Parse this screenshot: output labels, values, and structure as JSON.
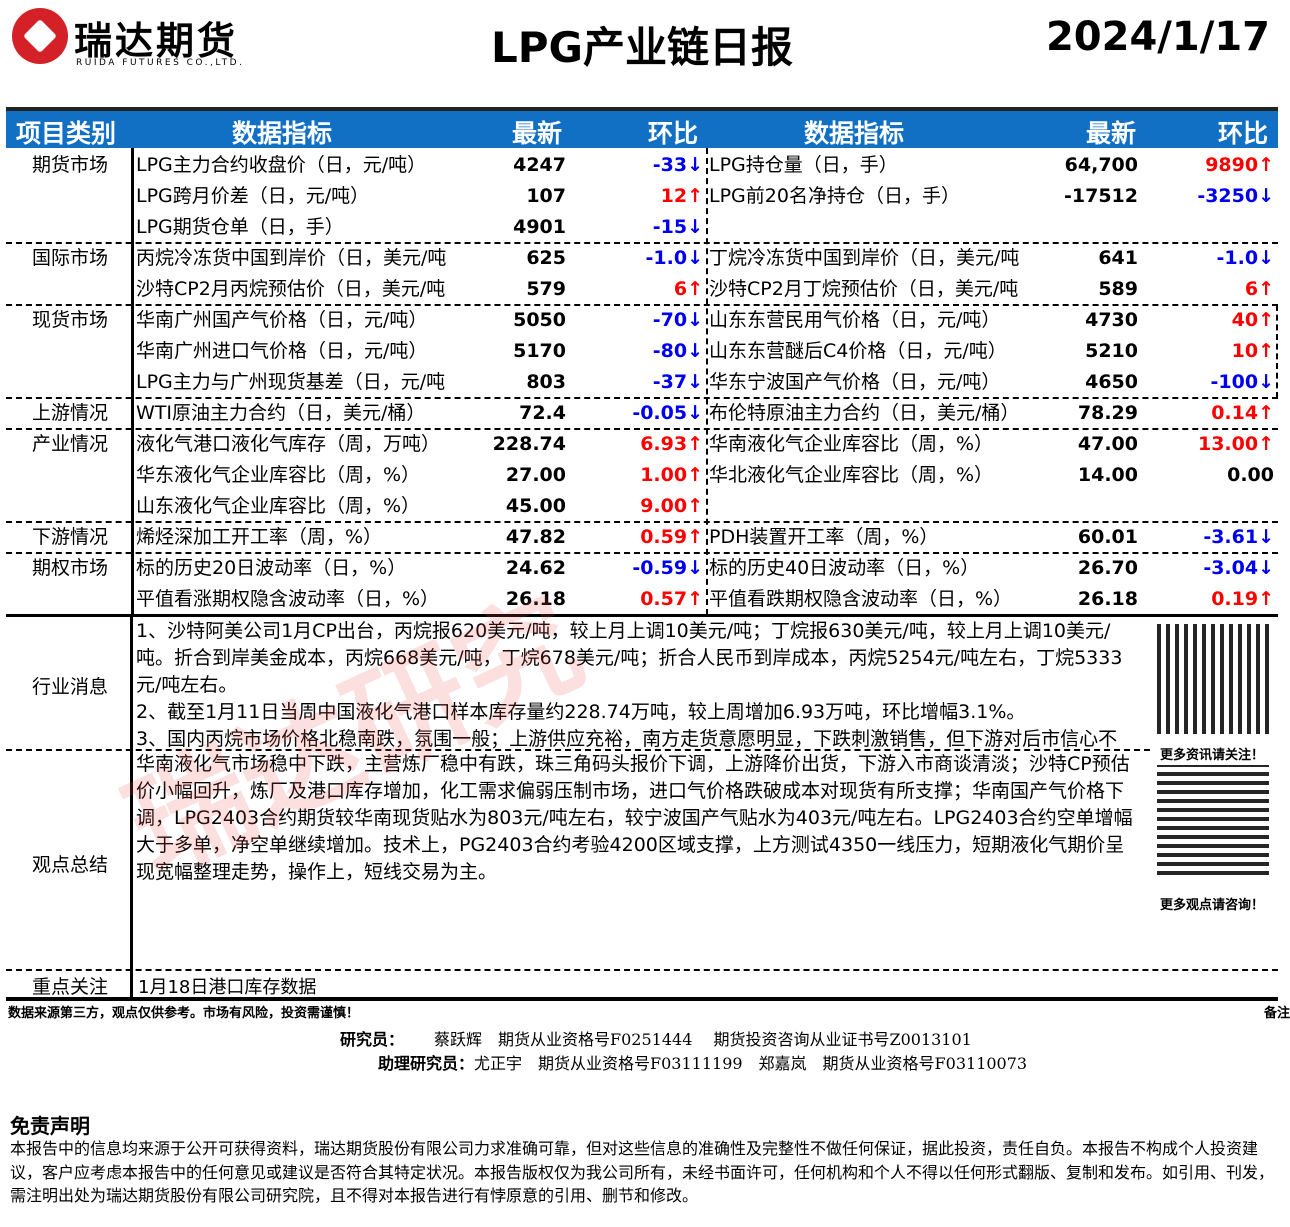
{
  "header": {
    "logo_cn": "瑞达期货",
    "logo_en": "RUIDA FUTURES CO.,LTD.",
    "title": "LPG产业链日报",
    "date": "2024/1/17"
  },
  "columns": {
    "category": "项目类别",
    "indicator": "数据指标",
    "latest": "最新",
    "change": "环比"
  },
  "colors": {
    "header_bg": "#1170c4",
    "up": "#ff0000",
    "down": "#0000f0"
  },
  "groups": [
    {
      "name": "期货市场",
      "rows": [
        [
          {
            "name": "LPG主力合约收盘价（日，元/吨）",
            "value": "4247",
            "change": "-33↓",
            "dir": "down"
          },
          {
            "name": "LPG持仓量（日，手）",
            "value": "64,700",
            "change": "9890↑",
            "dir": "up"
          }
        ],
        [
          {
            "name": "LPG跨月价差（日，元/吨）",
            "value": "107",
            "change": "12↑",
            "dir": "up"
          },
          {
            "name": "LPG前20名净持仓（日，手）",
            "value": "-17512",
            "change": "-3250↓",
            "dir": "down"
          }
        ],
        [
          {
            "name": "LPG期货仓单（日，手）",
            "value": "4901",
            "change": "-15↓",
            "dir": "down"
          },
          null
        ]
      ]
    },
    {
      "name": "国际市场",
      "rows": [
        [
          {
            "name": "丙烷冷冻货中国到岸价（日，美元/吨",
            "value": "625",
            "change": "-1.0↓",
            "dir": "down"
          },
          {
            "name": "丁烷冷冻货中国到岸价（日，美元/吨",
            "value": "641",
            "change": "-1.0↓",
            "dir": "down"
          }
        ],
        [
          {
            "name": "沙特CP2月丙烷预估价（日，美元/吨",
            "value": "579",
            "change": "6↑",
            "dir": "up"
          },
          {
            "name": "沙特CP2月丁烷预估价（日，美元/吨",
            "value": "589",
            "change": "6↑",
            "dir": "up"
          }
        ]
      ]
    },
    {
      "name": "现货市场",
      "rows": [
        [
          {
            "name": "华南广州国产气价格（日，元/吨）",
            "value": "5050",
            "change": "-70↓",
            "dir": "down"
          },
          {
            "name": "山东东营民用气价格（日，元/吨）",
            "value": "4730",
            "change": "40↑",
            "dir": "up"
          }
        ],
        [
          {
            "name": "华南广州进口气价格（日，元/吨）",
            "value": "5170",
            "change": "-80↓",
            "dir": "down"
          },
          {
            "name": "山东东营醚后C4价格（日，元/吨）",
            "value": "5210",
            "change": "10↑",
            "dir": "up"
          }
        ],
        [
          {
            "name": "LPG主力与广州现货基差（日，元/吨",
            "value": "803",
            "change": "-37↓",
            "dir": "down"
          },
          {
            "name": "华东宁波国产气价格（日，元/吨）",
            "value": "4650",
            "change": "-100↓",
            "dir": "down"
          }
        ]
      ]
    },
    {
      "name": "上游情况",
      "rows": [
        [
          {
            "name": "WTI原油主力合约（日，美元/桶）",
            "value": "72.4",
            "change": "-0.05↓",
            "dir": "down"
          },
          {
            "name": "布伦特原油主力合约（日，美元/桶）",
            "value": "78.29",
            "change": "0.14↑",
            "dir": "up"
          }
        ]
      ]
    },
    {
      "name": "产业情况",
      "rows": [
        [
          {
            "name": "液化气港口液化气库存（周，万吨）",
            "value": "228.74",
            "change": "6.93↑",
            "dir": "up"
          },
          {
            "name": "华南液化气企业库容比（周，%）",
            "value": "47.00",
            "change": "13.00↑",
            "dir": "up"
          }
        ],
        [
          {
            "name": "华东液化气企业库容比（周，%）",
            "value": "27.00",
            "change": "1.00↑",
            "dir": "up"
          },
          {
            "name": "华北液化气企业库容比（周，%）",
            "value": "14.00",
            "change": "0.00",
            "dir": "flat"
          }
        ],
        [
          {
            "name": "山东液化气企业库容比（周，%）",
            "value": "45.00",
            "change": "9.00↑",
            "dir": "up"
          },
          null
        ]
      ]
    },
    {
      "name": "下游情况",
      "rows": [
        [
          {
            "name": "烯烃深加工开工率（周，%）",
            "value": "47.82",
            "change": "0.59↑",
            "dir": "up"
          },
          {
            "name": "PDH装置开工率（周，%）",
            "value": "60.01",
            "change": "-3.61↓",
            "dir": "down"
          }
        ]
      ]
    },
    {
      "name": "期权市场",
      "rows": [
        [
          {
            "name": "标的历史20日波动率（日，%）",
            "value": "24.62",
            "change": "-0.59↓",
            "dir": "down"
          },
          {
            "name": "标的历史40日波动率（日，%）",
            "value": "26.70",
            "change": "-3.04↓",
            "dir": "down"
          }
        ],
        [
          {
            "name": "平值看涨期权隐含波动率（日，%）",
            "value": "26.18",
            "change": "0.57↑",
            "dir": "up"
          },
          {
            "name": "平值看跌期权隐含波动率（日，%）",
            "value": "26.18",
            "change": "0.19↑",
            "dir": "up"
          }
        ]
      ]
    }
  ],
  "news": {
    "label": "行业消息",
    "text": "1、沙特阿美公司1月CP出台，丙烷报620美元/吨，较上月上调10美元/吨；丁烷报630美元/吨，较上月上调10美元/吨。折合到岸美金成本，丙烷668美元/吨，丁烷678美元/吨；折合人民币到岸成本，丙烷5254元/吨左右，丁烷5333元/吨左右。\n2、截至1月11日当周中国液化气港口样本库存量约228.74万吨，较上周增加6.93万吨，环比增幅3.1%。\n3、国内丙烷市场价格北稳南跌，氛围一般；上游供应充裕，南方走货意愿明显，下跌刺激销售，但下游对后市信心不"
  },
  "opinion": {
    "label": "观点总结",
    "text": "华南液化气市场稳中下跌，主营炼厂稳中有跌，珠三角码头报价下调，上游降价出货，下游入市商谈清淡；沙特CP预估价小幅回升，炼厂及港口库存增加，化工需求偏弱压制市场，进口气价格跌破成本对现货有所支撑；华南国产气价格下调，LPG2403合约期货较华南现货贴水为803元/吨左右，较宁波国产气贴水为403元/吨左右。LPG2403合约空单增幅大于多单，净空单继续增加。技术上，PG2403合约考验4200区域支撑，上方测试4350一线压力，短期液化气期价呈现宽幅整理走势，操作上，短线交易为主。"
  },
  "focus": {
    "label": "重点关注",
    "text": "1月18日港口库存数据"
  },
  "qr": {
    "caption1": "更多资讯请关注！",
    "caption2": "更多观点请咨询！"
  },
  "footer": {
    "source": "数据来源第三方，观点仅供参考。市场有风险，投资需谨慎！",
    "note": "备注",
    "researcher_label": "研究员：",
    "researcher": "蔡跃辉　期货从业资格号F0251444　 期货投资咨询从业证书号Z0013101",
    "assistant_label": "助理研究员：",
    "assistant": "尤正宇　期货从业资格号F03111199　郑嘉岚　期货从业资格号F03110073"
  },
  "disclaimer": {
    "title": "免责声明",
    "text": "本报告中的信息均来源于公开可获得资料，瑞达期货股份有限公司力求准确可靠，但对这些信息的准确性及完整性不做任何保证，据此投资，责任自负。本报告不构成个人投资建议，客户应考虑本报告中的任何意见或建议是否符合其特定状况。本报告版权仅为我公司所有，未经书面许可，任何机构和个人不得以任何形式翻版、复制和发布。如引用、刊发，需注明出处为瑞达期货股份有限公司研究院，且不得对本报告进行有悖原意的引用、删节和修改。"
  },
  "watermark": "瑞达研究"
}
